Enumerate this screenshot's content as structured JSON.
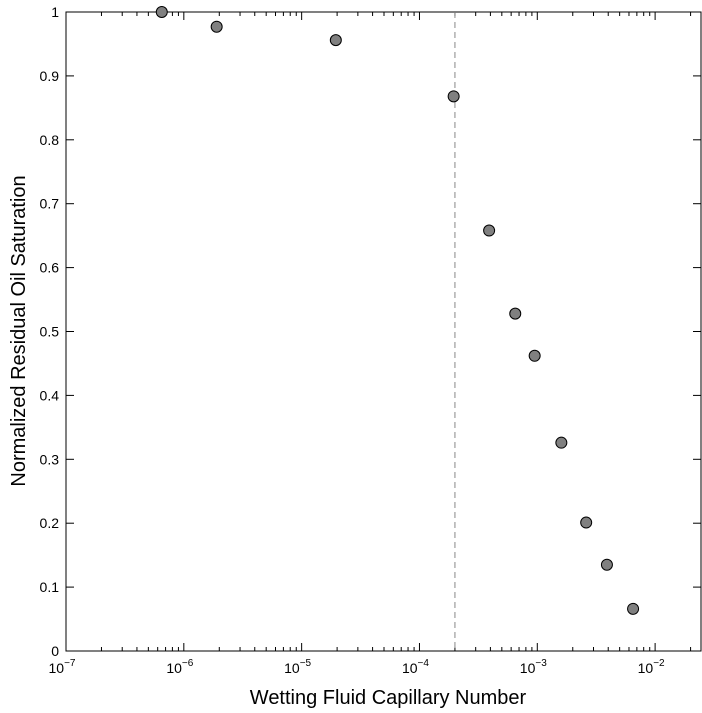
{
  "chart_data": {
    "type": "scatter",
    "xlabel": "Wetting Fluid Capillary Number",
    "ylabel": "Normalized Residual Oil Saturation",
    "x_scale": "log",
    "xlim": [
      1e-07,
      0.025
    ],
    "ylim": [
      0,
      1
    ],
    "x_ticks": [
      {
        "value": 1e-07,
        "base": "10",
        "exp": "−7"
      },
      {
        "value": 1e-06,
        "base": "10",
        "exp": "−6"
      },
      {
        "value": 1e-05,
        "base": "10",
        "exp": "−5"
      },
      {
        "value": 0.0001,
        "base": "10",
        "exp": "−4"
      },
      {
        "value": 0.001,
        "base": "10",
        "exp": "−3"
      },
      {
        "value": 0.01,
        "base": "10",
        "exp": "−2"
      }
    ],
    "y_ticks": [
      {
        "value": 0,
        "label": "0"
      },
      {
        "value": 0.1,
        "label": "0.1"
      },
      {
        "value": 0.2,
        "label": "0.2"
      },
      {
        "value": 0.3,
        "label": "0.3"
      },
      {
        "value": 0.4,
        "label": "0.4"
      },
      {
        "value": 0.5,
        "label": "0.5"
      },
      {
        "value": 0.6,
        "label": "0.6"
      },
      {
        "value": 0.7,
        "label": "0.7"
      },
      {
        "value": 0.8,
        "label": "0.8"
      },
      {
        "value": 0.9,
        "label": "0.9"
      },
      {
        "value": 1,
        "label": "1"
      }
    ],
    "reference_line": {
      "x": 0.0002,
      "style": "dashed",
      "color": "#888888"
    },
    "grid": false,
    "marker_color": "#808080",
    "points": [
      {
        "x": 6.5e-07,
        "y": 1.0
      },
      {
        "x": 1.9e-06,
        "y": 0.977
      },
      {
        "x": 1.95e-05,
        "y": 0.956
      },
      {
        "x": 0.000195,
        "y": 0.868
      },
      {
        "x": 0.00039,
        "y": 0.658
      },
      {
        "x": 0.00065,
        "y": 0.528
      },
      {
        "x": 0.00095,
        "y": 0.462
      },
      {
        "x": 0.0016,
        "y": 0.326
      },
      {
        "x": 0.0026,
        "y": 0.201
      },
      {
        "x": 0.0039,
        "y": 0.135
      },
      {
        "x": 0.0065,
        "y": 0.066
      }
    ]
  }
}
